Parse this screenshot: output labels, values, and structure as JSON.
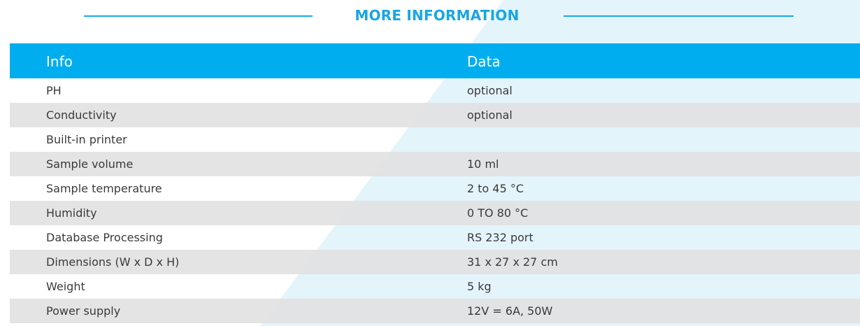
{
  "header": {
    "title": "MORE INFORMATION"
  },
  "table": {
    "columns": [
      "Info",
      "Data"
    ],
    "rows": [
      [
        "PH",
        "optional"
      ],
      [
        "Conductivity",
        "optional"
      ],
      [
        "Built-in printer"
      ],
      [
        "Sample volume",
        "10 ml"
      ],
      [
        "Sample temperature",
        "2 to 45 °C"
      ],
      [
        "Humidity",
        "0 TO 80 °C"
      ],
      [
        "Database Processing",
        "RS 232 port"
      ],
      [
        "Dimensions (W x D x H)",
        "31 x 27 x 27 cm"
      ],
      [
        "Weight",
        "5 kg"
      ],
      [
        "Power supply",
        "12V = 6A, 50W"
      ]
    ]
  }
}
